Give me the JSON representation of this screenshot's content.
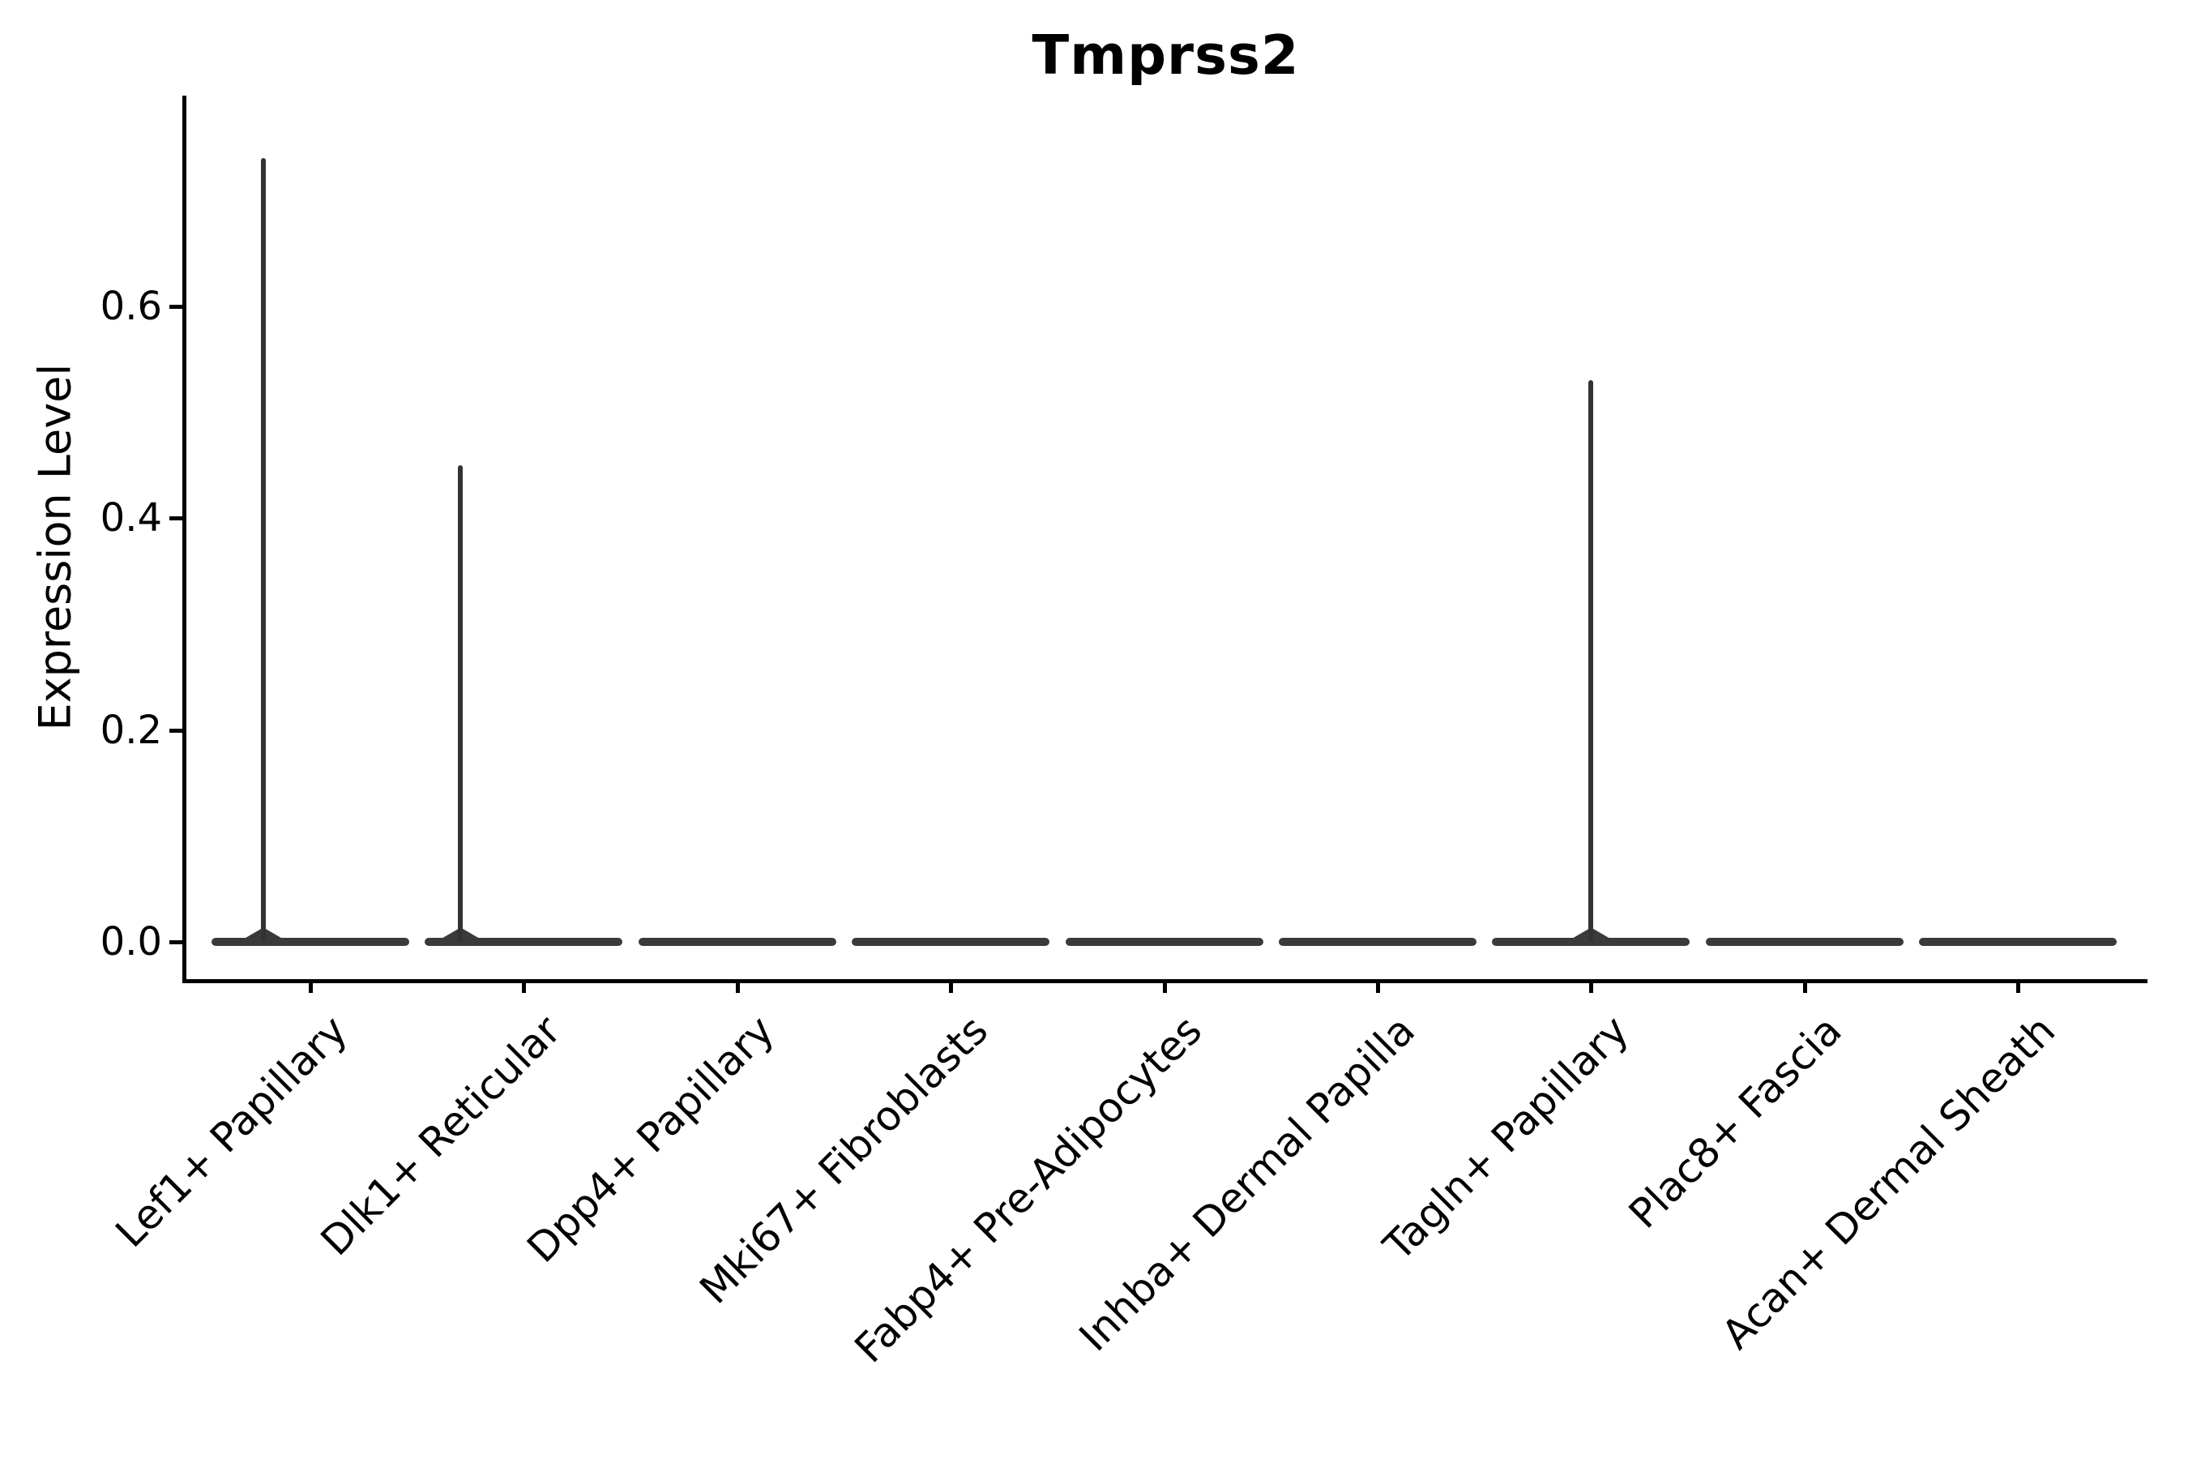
{
  "title": "Tmprss2",
  "colors": {
    "violin_fill": "#3a3a3a",
    "violin_line": "#333333",
    "axis": "#000000",
    "text": "#000000",
    "background": "#ffffff"
  },
  "chart_data": {
    "type": "violin",
    "title": "Tmprss2",
    "xlabel": "",
    "ylabel": "Expression Level",
    "grid": false,
    "legend_position": "none",
    "ylim": [
      -0.035,
      0.8
    ],
    "yticks": [
      "0.0",
      "0.2",
      "0.4",
      "0.6"
    ],
    "categories": [
      "Lef1+ Papillary",
      "Dlk1+ Reticular",
      "Dpp4+ Papillary",
      "Mki67+ Fibroblasts",
      "Fabp4+ Pre-Adipocytes",
      "Inhba+ Dermal Papilla",
      "Tagln+ Papillary",
      "Plac8+ Fascia",
      "Acan+ Dermal Sheath"
    ],
    "violins": [
      {
        "label": "Lef1+ Papillary",
        "body_value": 0.0,
        "max_value": 0.74,
        "has_spike": true
      },
      {
        "label": "Dlk1+ Reticular",
        "body_value": 0.0,
        "max_value": 0.45,
        "has_spike": true
      },
      {
        "label": "Dpp4+ Papillary",
        "body_value": 0.0,
        "max_value": 0.0,
        "has_spike": false
      },
      {
        "label": "Mki67+ Fibroblasts",
        "body_value": 0.0,
        "max_value": 0.0,
        "has_spike": false
      },
      {
        "label": "Fabp4+ Pre-Adipocytes",
        "body_value": 0.0,
        "max_value": 0.0,
        "has_spike": false
      },
      {
        "label": "Inhba+ Dermal Papilla",
        "body_value": 0.0,
        "max_value": 0.0,
        "has_spike": false
      },
      {
        "label": "Tagln+ Papillary",
        "body_value": 0.0,
        "max_value": 0.53,
        "has_spike": true
      },
      {
        "label": "Plac8+ Fascia",
        "body_value": 0.0,
        "max_value": 0.0,
        "has_spike": false
      },
      {
        "label": "Acan+ Dermal Sheath",
        "body_value": 0.0,
        "max_value": 0.0,
        "has_spike": false
      }
    ]
  }
}
